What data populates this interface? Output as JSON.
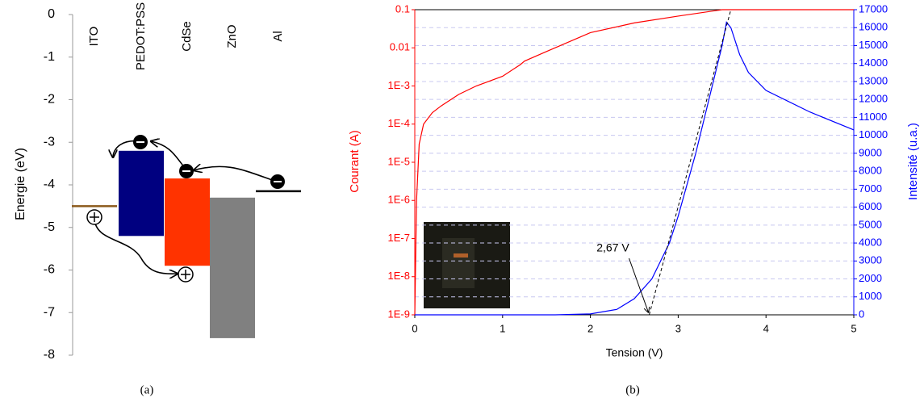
{
  "chart_data": [
    {
      "type": "energy-levels",
      "caption": "(a)",
      "ylabel": "Energie (eV)",
      "categories": [
        "ITO",
        "PEDOT:PSS",
        "CdSe",
        "ZnO",
        "Al"
      ],
      "work_function": [
        -4.5,
        null,
        null,
        null,
        -4.15
      ],
      "lumo": [
        null,
        -3.2,
        -3.85,
        -4.3,
        null
      ],
      "homo": [
        null,
        -5.2,
        -5.9,
        -7.6,
        null
      ],
      "colors": [
        "#8b5a1b",
        "#000080",
        "#ff3300",
        "#808080",
        "#000000"
      ],
      "ylim": [
        -8,
        0
      ],
      "yticks": [
        0,
        -1,
        -2,
        -3,
        -4,
        -5,
        -6,
        -7,
        -8
      ]
    },
    {
      "type": "dual-line",
      "caption": "(b)",
      "xlabel": "Tension (V)",
      "ylabel": "Courant (A)",
      "y2label": "Intensité (u.a.)",
      "ylog": true,
      "grid": true,
      "xlim": [
        0,
        5
      ],
      "xticks": [
        0,
        1,
        2,
        3,
        4,
        5
      ],
      "ylim": [
        1e-09,
        0.1
      ],
      "yticks": [
        {
          "value": 1e-09,
          "label": "1E-9"
        },
        {
          "value": 1e-08,
          "label": "1E-8"
        },
        {
          "value": 1e-07,
          "label": "1E-7"
        },
        {
          "value": 1e-06,
          "label": "1E-6"
        },
        {
          "value": 1e-05,
          "label": "1E-5"
        },
        {
          "value": 0.0001,
          "label": "1E-4"
        },
        {
          "value": 0.001,
          "label": "1E-3"
        },
        0.01,
        0.1
      ],
      "y2lim": [
        0,
        17000
      ],
      "y2ticks": [
        0,
        1000,
        2000,
        3000,
        4000,
        5000,
        6000,
        7000,
        8000,
        9000,
        10000,
        11000,
        12000,
        13000,
        14000,
        15000,
        16000,
        17000
      ],
      "series": [
        {
          "color": "#ff0000",
          "axis": "y",
          "x": [
            0,
            0.02,
            0.05,
            0.1,
            0.2,
            0.3,
            0.5,
            0.7,
            1.0,
            1.2,
            1.25,
            1.5,
            2.0,
            2.5,
            3.0,
            3.5,
            4.0,
            5.0
          ],
          "values": [
            1e-09,
            1e-06,
            3e-05,
            0.0001,
            0.0002,
            0.0003,
            0.0006,
            0.001,
            0.0018,
            0.0036,
            0.0045,
            0.008,
            0.025,
            0.045,
            0.068,
            0.1,
            0.1,
            0.1
          ]
        },
        {
          "color": "#0000ff",
          "axis": "y2",
          "x": [
            0,
            1.6,
            2.0,
            2.3,
            2.5,
            2.7,
            2.9,
            3.0,
            3.2,
            3.4,
            3.5,
            3.55,
            3.6,
            3.7,
            3.8,
            4.0,
            4.5,
            5.0
          ],
          "values": [
            0,
            0,
            50,
            300,
            900,
            2000,
            4000,
            5500,
            9000,
            13000,
            15000,
            16300,
            16000,
            14500,
            13500,
            12500,
            11300,
            10300
          ]
        }
      ],
      "tangent": {
        "x": [
          2.67,
          3.6
        ],
        "y": [
          0,
          17000
        ]
      },
      "annotations": [
        {
          "text": "2,67 V",
          "x": 2.67,
          "y": 0
        }
      ]
    }
  ]
}
